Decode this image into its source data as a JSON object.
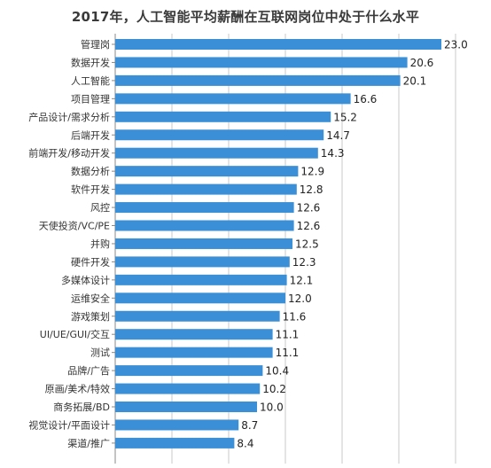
{
  "chart_data": {
    "type": "bar",
    "orientation": "horizontal",
    "title": "2017年，人工智能平均薪酬在互联网岗位中处于什么水平",
    "categories": [
      "管理岗",
      "数据开发",
      "人工智能",
      "项目管理",
      "产品设计/需求分析",
      "后端开发",
      "前端开发/移动开发",
      "数据分析",
      "软件开发",
      "风控",
      "天使投资/VC/PE",
      "并购",
      "硬件开发",
      "多媒体设计",
      "运维安全",
      "游戏策划",
      "UI/UE/GUI/交互",
      "测试",
      "品牌/广告",
      "原画/美术/特效",
      "商务拓展/BD",
      "视觉设计/平面设计",
      "渠道/推广"
    ],
    "values": [
      23.0,
      20.6,
      20.1,
      16.6,
      15.2,
      14.7,
      14.3,
      12.9,
      12.8,
      12.6,
      12.6,
      12.5,
      12.3,
      12.1,
      12.0,
      11.6,
      11.1,
      11.1,
      10.4,
      10.2,
      10.0,
      8.7,
      8.4
    ],
    "value_labels": [
      "23.0",
      "20.6",
      "20.1",
      "16.6",
      "15.2",
      "14.7",
      "14.3",
      "12.9",
      "12.8",
      "12.6",
      "12.6",
      "12.5",
      "12.3",
      "12.1",
      "12.0",
      "11.6",
      "11.1",
      "11.1",
      "10.4",
      "10.2",
      "10.0",
      "8.7",
      "8.4"
    ],
    "xlim": [
      0,
      25
    ],
    "grid": true,
    "legend": "none",
    "bar_color": "#3a8fd6"
  }
}
